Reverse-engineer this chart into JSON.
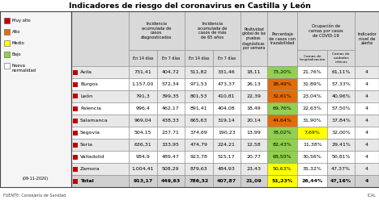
{
  "title": "Indicadores de riesgo del coronavirus en Castilla y León",
  "footer_left": "FUENTE: Consejería de Sanidad",
  "footer_right": "ICAL",
  "date_label": "(09-11-2020)",
  "legend_labels": [
    "Muy alto",
    "Alto",
    "Medio",
    "Bajo",
    "Nueva\nnormalidad"
  ],
  "legend_colors": [
    "#c00000",
    "#e36c09",
    "#ffff00",
    "#92d050",
    "#ffffff"
  ],
  "provinces": [
    "■ Ávila",
    "■ Burgos",
    "■ León",
    "■ Palencia",
    "■ Salamanca",
    "■ Segovia",
    "■ Soria",
    "■ Valladolid",
    "■ Zamora",
    "■ Total"
  ],
  "province_bold": [
    false,
    false,
    false,
    false,
    false,
    false,
    false,
    false,
    false,
    true
  ],
  "rows": [
    [
      "731,41",
      "404,72",
      "511,82",
      "331,46",
      "18,11",
      "73,20%",
      "21,76%",
      "61,11%",
      "4"
    ],
    [
      "1.157,00",
      "572,34",
      "971,53",
      "473,37",
      "26,13",
      "28,49%",
      "31,89%",
      "57,33%",
      "4"
    ],
    [
      "791,3",
      "399,35",
      "801,53",
      "410,81",
      "22,39",
      "32,61%",
      "23,04%",
      "40,96%",
      "4"
    ],
    [
      "996,4",
      "462,17",
      "891,41",
      "404,08",
      "18,49",
      "69,76%",
      "22,63%",
      "57,50%",
      "4"
    ],
    [
      "969,04",
      "438,33",
      "665,63",
      "319,14",
      "20,14",
      "44,64%",
      "31,90%",
      "37,84%",
      "4"
    ],
    [
      "504,15",
      "237,71",
      "374,69",
      "190,23",
      "13,99",
      "78,02%",
      "7,69%",
      "32,00%",
      "4"
    ],
    [
      "636,31",
      "333,95",
      "474,79",
      "224,21",
      "12,58",
      "82,43%",
      "11,38%",
      "29,41%",
      "4"
    ],
    [
      "984,9",
      "489,47",
      "923,78",
      "515,17",
      "20,77",
      "68,50%",
      "30,56%",
      "50,81%",
      "4"
    ],
    [
      "1.004,41",
      "508,29",
      "879,63",
      "484,93",
      "23,43",
      "50,63%",
      "35,32%",
      "47,37%",
      "4"
    ],
    [
      "913,17",
      "449,63",
      "786,32",
      "407,87",
      "21,09",
      "51,23%",
      "26,44%",
      "47,16%",
      "4"
    ]
  ],
  "traz_colors": [
    "#92d050",
    "#e36c09",
    "#e36c09",
    "#92d050",
    "#e36c09",
    "#92d050",
    "#92d050",
    "#92d050",
    "#ffff00",
    "#ffff00"
  ],
  "camhosp_colors": [
    "#ffffff",
    "#ffffff",
    "#ffffff",
    "#ffffff",
    "#ffffff",
    "#ffff00",
    "#ffffff",
    "#ffffff",
    "#ffffff",
    "#ffffff"
  ],
  "row_bgs": [
    "#e8e8e8",
    "#ffffff",
    "#e8e8e8",
    "#ffffff",
    "#e8e8e8",
    "#ffffff",
    "#e8e8e8",
    "#ffffff",
    "#e8e8e8",
    "#d0d0d0"
  ],
  "header_bg": "#d9d9d9",
  "border_color": "#888888",
  "text_color": "#000000"
}
